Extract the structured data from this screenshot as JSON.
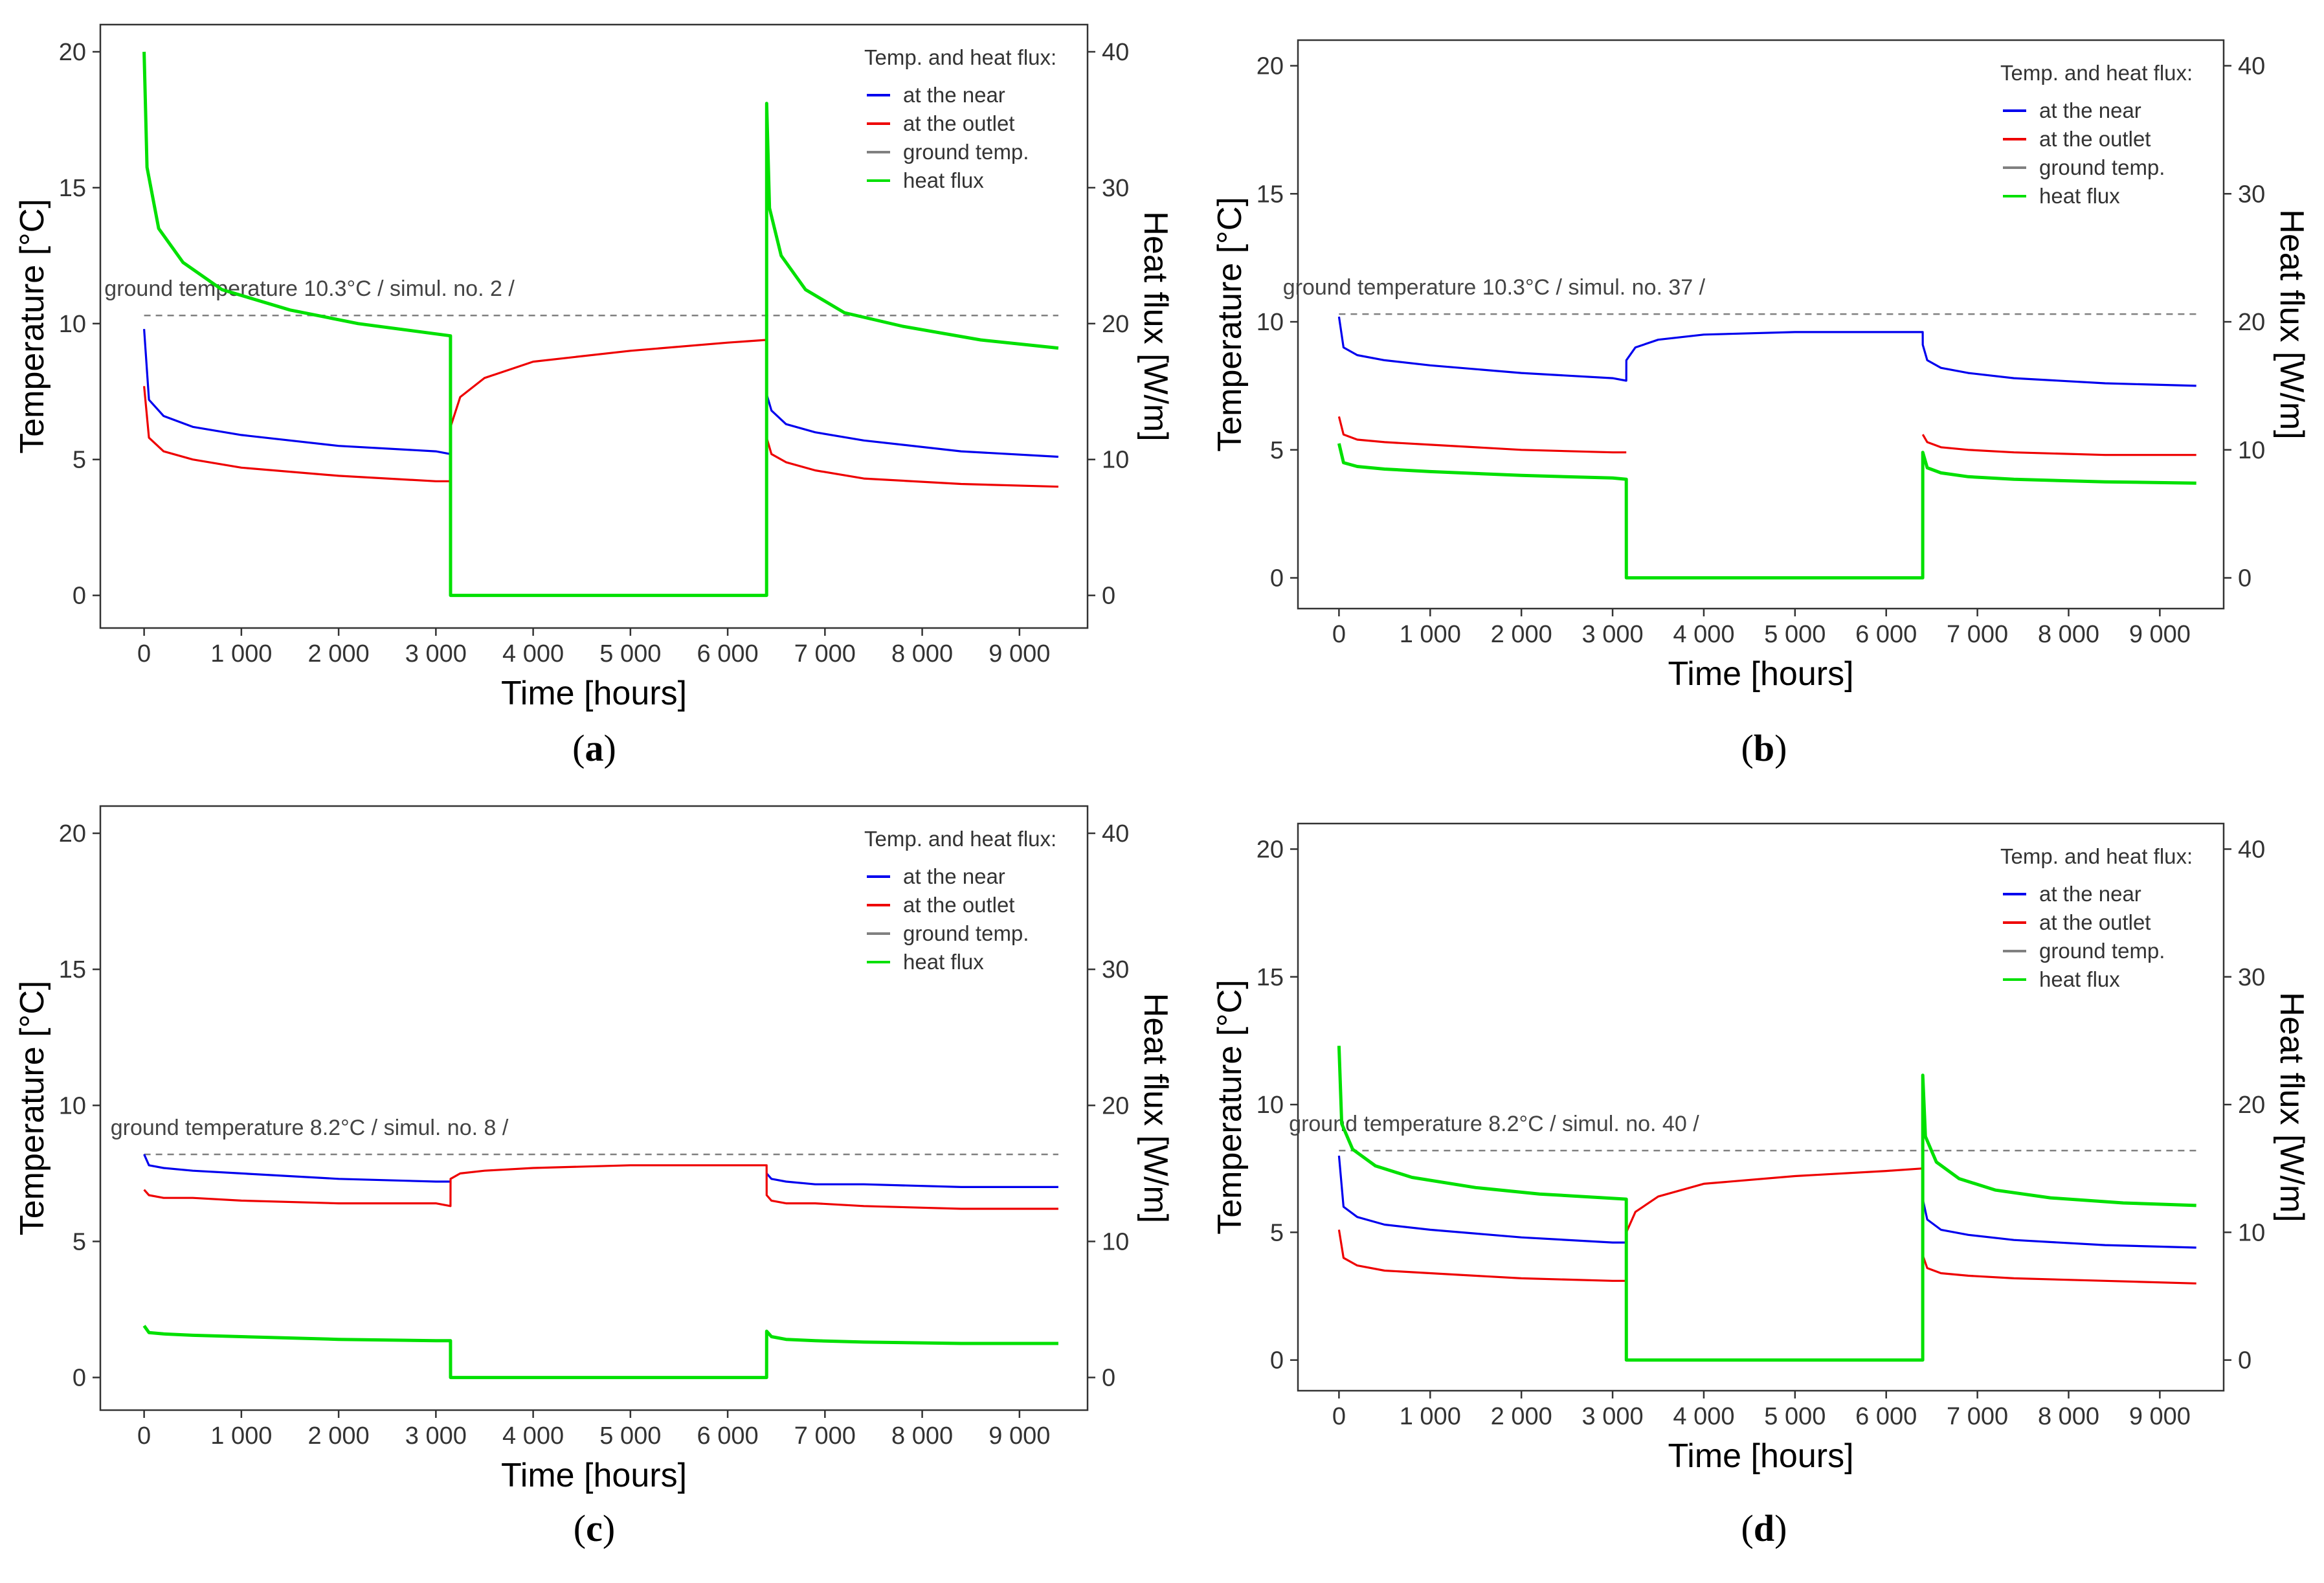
{
  "legend": {
    "title": "Temp. and heat flux:",
    "entries": [
      {
        "label": "at the near",
        "color": "#0000ee",
        "key": "near"
      },
      {
        "label": "at the outlet",
        "color": "#ee0000",
        "key": "outlet"
      },
      {
        "label": "ground temp.",
        "color": "#808080",
        "key": "ground"
      },
      {
        "label": "heat flux",
        "color": "#00e000",
        "key": "flux"
      }
    ]
  },
  "x_ticks": [
    0,
    1000,
    2000,
    3000,
    4000,
    5000,
    6000,
    7000,
    8000,
    9000
  ],
  "x_tick_labels": [
    "0",
    "1 000",
    "2 000",
    "3 000",
    "4 000",
    "5 000",
    "6 000",
    "7 000",
    "8 000",
    "9 000"
  ],
  "y_left_ticks": [
    0,
    5,
    10,
    15,
    20
  ],
  "y_right_ticks": [
    0,
    10,
    20,
    30,
    40
  ],
  "chart_data": [
    {
      "type": "line",
      "panel_label": "a",
      "annotation": "ground temperature 10.3°C / simul. no. 2 /",
      "xlabel": "Time [hours]",
      "ylabel": "Temperature [°C]",
      "ylabel_right": "Heat flux [W/m]",
      "xlim": [
        -450,
        9700
      ],
      "ylim": [
        -1.2,
        21.0
      ],
      "ylim_right": [
        -2.4,
        42.0
      ],
      "legend_position": "top-right",
      "grid": false,
      "ground_temperature": 10.3,
      "series": [
        {
          "key": "near",
          "axis": "left",
          "x": [
            0,
            50,
            200,
            500,
            1000,
            2000,
            3000,
            3150,
            3151,
            4000,
            6400,
            6401,
            6450,
            6600,
            6900,
            7400,
            8400,
            9400
          ],
          "y": [
            9.8,
            7.2,
            6.6,
            6.2,
            5.9,
            5.5,
            5.3,
            5.2,
            null,
            null,
            null,
            7.4,
            6.8,
            6.3,
            6.0,
            5.7,
            5.3,
            5.1
          ]
        },
        {
          "key": "outlet",
          "axis": "left",
          "x": [
            0,
            50,
            200,
            500,
            1000,
            2000,
            3000,
            3150,
            3151,
            3250,
            3500,
            4000,
            5000,
            6000,
            6400,
            6401,
            6450,
            6600,
            6900,
            7400,
            8400,
            9400
          ],
          "y": [
            7.7,
            5.8,
            5.3,
            5.0,
            4.7,
            4.4,
            4.2,
            4.2,
            6.2,
            7.3,
            8.0,
            8.6,
            9.0,
            9.3,
            9.4,
            5.8,
            5.2,
            4.9,
            4.6,
            4.3,
            4.1,
            4.0
          ]
        },
        {
          "key": "flux",
          "axis": "right",
          "x": [
            0,
            30,
            150,
            400,
            800,
            1500,
            2200,
            3150,
            3151,
            6400,
            6401,
            6430,
            6550,
            6800,
            7200,
            7800,
            8600,
            9400
          ],
          "y": [
            40.0,
            31.5,
            27.0,
            24.5,
            22.5,
            21.0,
            20.0,
            19.1,
            0,
            0,
            36.2,
            28.5,
            25.0,
            22.5,
            20.8,
            19.8,
            18.8,
            18.2
          ]
        }
      ]
    },
    {
      "type": "line",
      "panel_label": "b",
      "annotation": "ground temperature 10.3°C / simul. no. 37 /",
      "xlabel": "Time [hours]",
      "ylabel": "Temperature [°C]",
      "ylabel_right": "Heat flux [W/m]",
      "xlim": [
        -450,
        9700
      ],
      "ylim": [
        -1.2,
        21.0
      ],
      "ylim_right": [
        -2.4,
        42.0
      ],
      "legend_position": "top-right",
      "grid": false,
      "ground_temperature": 10.3,
      "series": [
        {
          "key": "near",
          "axis": "left",
          "x": [
            0,
            50,
            200,
            500,
            1000,
            2000,
            3000,
            3150,
            3151,
            3250,
            3500,
            4000,
            5000,
            6000,
            6400,
            6401,
            6450,
            6600,
            6900,
            7400,
            8400,
            9400
          ],
          "y": [
            10.2,
            9.0,
            8.7,
            8.5,
            8.3,
            8.0,
            7.8,
            7.7,
            8.5,
            9.0,
            9.3,
            9.5,
            9.6,
            9.6,
            9.6,
            9.1,
            8.5,
            8.2,
            8.0,
            7.8,
            7.6,
            7.5
          ]
        },
        {
          "key": "outlet",
          "axis": "left",
          "x": [
            0,
            50,
            200,
            500,
            1000,
            2000,
            3000,
            3150,
            3151,
            6400,
            6401,
            6450,
            6600,
            6900,
            7400,
            8400,
            9400
          ],
          "y": [
            6.3,
            5.6,
            5.4,
            5.3,
            5.2,
            5.0,
            4.9,
            4.9,
            null,
            null,
            5.6,
            5.3,
            5.1,
            5.0,
            4.9,
            4.8,
            4.8
          ]
        },
        {
          "key": "flux",
          "axis": "right",
          "x": [
            0,
            50,
            200,
            500,
            1000,
            2000,
            3000,
            3150,
            3151,
            6400,
            6401,
            6450,
            6600,
            6900,
            7400,
            8400,
            9400
          ],
          "y": [
            10.5,
            9.0,
            8.7,
            8.5,
            8.3,
            8.0,
            7.8,
            7.7,
            0,
            0,
            9.8,
            8.6,
            8.2,
            7.9,
            7.7,
            7.5,
            7.4
          ]
        }
      ]
    },
    {
      "type": "line",
      "panel_label": "c",
      "annotation": "ground temperature 8.2°C / simul. no. 8 /",
      "xlabel": "Time [hours]",
      "ylabel": "Temperature [°C]",
      "ylabel_right": "Heat flux [W/m]",
      "xlim": [
        -450,
        9700
      ],
      "ylim": [
        -1.2,
        21.0
      ],
      "ylim_right": [
        -2.4,
        42.0
      ],
      "legend_position": "top-right",
      "grid": false,
      "ground_temperature": 8.2,
      "series": [
        {
          "key": "near",
          "axis": "left",
          "x": [
            0,
            50,
            200,
            500,
            1000,
            2000,
            3000,
            3150,
            3151,
            6400,
            6401,
            6450,
            6600,
            6900,
            7400,
            8400,
            9400
          ],
          "y": [
            8.2,
            7.8,
            7.7,
            7.6,
            7.5,
            7.3,
            7.2,
            7.2,
            null,
            null,
            7.5,
            7.3,
            7.2,
            7.1,
            7.1,
            7.0,
            7.0
          ]
        },
        {
          "key": "outlet",
          "axis": "left",
          "x": [
            0,
            50,
            200,
            500,
            1000,
            2000,
            3000,
            3150,
            3151,
            3250,
            3500,
            4000,
            5000,
            6000,
            6400,
            6401,
            6450,
            6600,
            6900,
            7400,
            8400,
            9400
          ],
          "y": [
            6.9,
            6.7,
            6.6,
            6.6,
            6.5,
            6.4,
            6.4,
            6.3,
            7.3,
            7.5,
            7.6,
            7.7,
            7.8,
            7.8,
            7.8,
            6.7,
            6.5,
            6.4,
            6.4,
            6.3,
            6.2,
            6.2
          ]
        },
        {
          "key": "flux",
          "axis": "right",
          "x": [
            0,
            50,
            200,
            500,
            1000,
            2000,
            3000,
            3150,
            3151,
            6400,
            6401,
            6450,
            6600,
            6900,
            7400,
            8400,
            9400
          ],
          "y": [
            3.8,
            3.3,
            3.2,
            3.1,
            3.0,
            2.8,
            2.7,
            2.7,
            0,
            0,
            3.4,
            3.0,
            2.8,
            2.7,
            2.6,
            2.5,
            2.5
          ]
        }
      ]
    },
    {
      "type": "line",
      "panel_label": "d",
      "annotation": "ground temperature 8.2°C / simul. no. 40 /",
      "xlabel": "Time [hours]",
      "ylabel": "Temperature [°C]",
      "ylabel_right": "Heat flux [W/m]",
      "xlim": [
        -450,
        9700
      ],
      "ylim": [
        -1.2,
        21.0
      ],
      "ylim_right": [
        -2.4,
        42.0
      ],
      "legend_position": "top-right",
      "grid": false,
      "ground_temperature": 8.2,
      "series": [
        {
          "key": "near",
          "axis": "left",
          "x": [
            0,
            50,
            200,
            500,
            1000,
            2000,
            3000,
            3150,
            3151,
            6400,
            6401,
            6450,
            6600,
            6900,
            7400,
            8400,
            9400
          ],
          "y": [
            8.0,
            6.0,
            5.6,
            5.3,
            5.1,
            4.8,
            4.6,
            4.6,
            null,
            null,
            6.3,
            5.5,
            5.1,
            4.9,
            4.7,
            4.5,
            4.4
          ]
        },
        {
          "key": "outlet",
          "axis": "left",
          "x": [
            0,
            50,
            200,
            500,
            1000,
            2000,
            3000,
            3150,
            3151,
            3250,
            3500,
            4000,
            5000,
            6000,
            6400,
            6401,
            6450,
            6600,
            6900,
            7400,
            8400,
            9400
          ],
          "y": [
            5.1,
            4.0,
            3.7,
            3.5,
            3.4,
            3.2,
            3.1,
            3.1,
            5.0,
            5.8,
            6.4,
            6.9,
            7.2,
            7.4,
            7.5,
            4.1,
            3.6,
            3.4,
            3.3,
            3.2,
            3.1,
            3.0
          ]
        },
        {
          "key": "flux",
          "axis": "right",
          "x": [
            0,
            30,
            150,
            400,
            800,
            1500,
            2200,
            3150,
            3151,
            6400,
            6401,
            6430,
            6550,
            6800,
            7200,
            7800,
            8600,
            9400
          ],
          "y": [
            24.6,
            18.5,
            16.5,
            15.2,
            14.3,
            13.5,
            13.0,
            12.6,
            0,
            0,
            22.3,
            17.5,
            15.5,
            14.2,
            13.3,
            12.7,
            12.3,
            12.1
          ]
        }
      ]
    }
  ]
}
